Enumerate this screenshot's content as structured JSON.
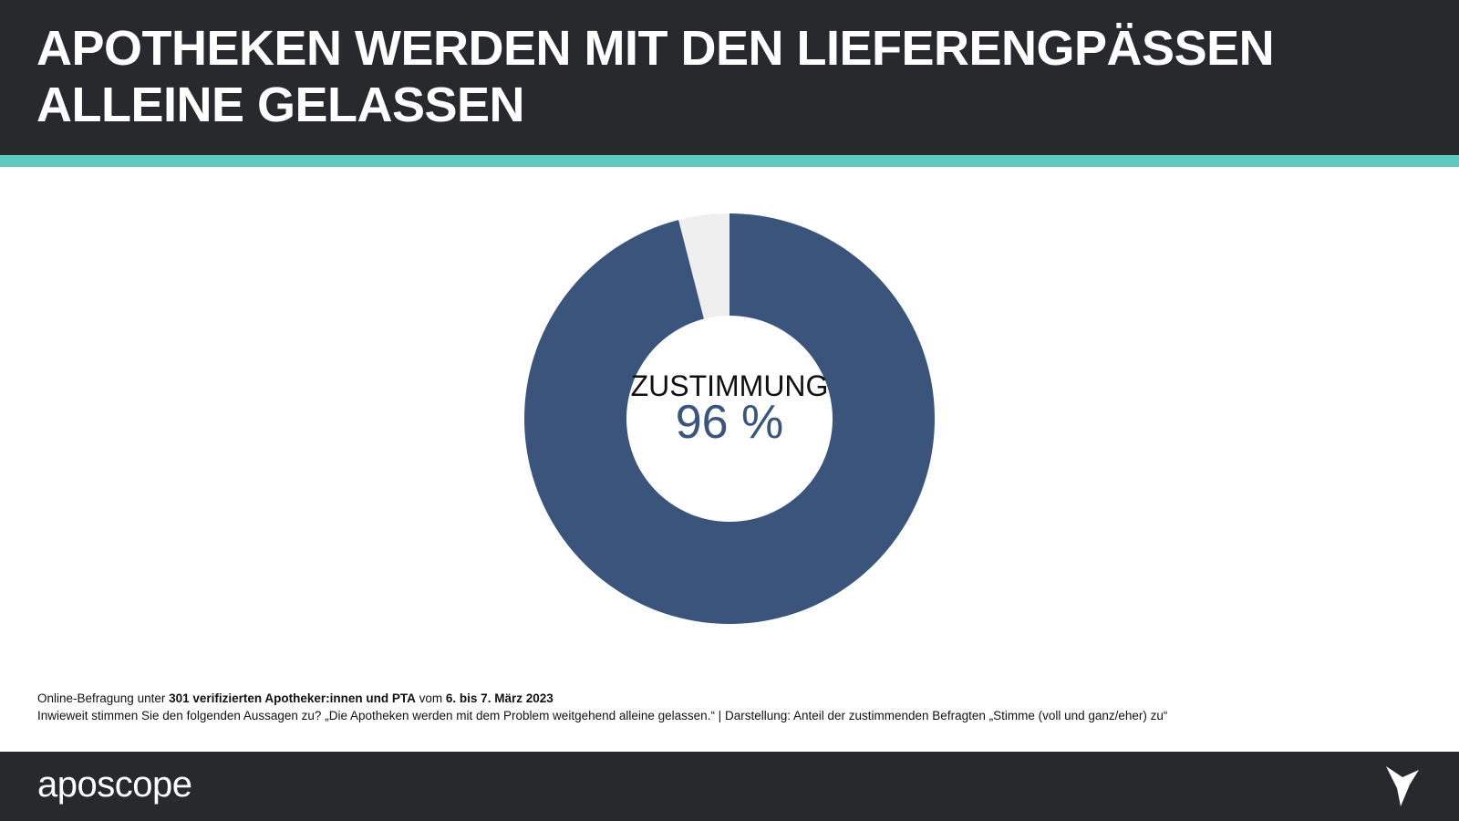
{
  "chart_data": {
    "type": "donut",
    "title": [
      "APOTHEKEN WERDEN MIT DEN LIEFERENGPÄSSEN",
      "ALLEINE GELASSEN"
    ],
    "categories": [
      "ZUSTIMMUNG",
      null
    ],
    "values": [
      96,
      4
    ],
    "value_labels": [
      "96 %",
      null
    ],
    "colors": [
      "#3a547c",
      "#efefef"
    ]
  },
  "note": {
    "line1": [
      "Online-Befragung unter ",
      "301 verifizierten Apotheker:innen und PTA",
      " vom ",
      "6. bis 7. März 2023"
    ],
    "line2": "Inwieweit stimmen Sie den folgenden Aussagen zu? „Die Apotheken werden mit dem Problem weitgehend alleine gelassen.“ | Darstellung: Anteil der zustimmenden Befragten „Stimme (voll und ganz/eher) zu“"
  },
  "footer": {
    "logo": "aposcope"
  }
}
